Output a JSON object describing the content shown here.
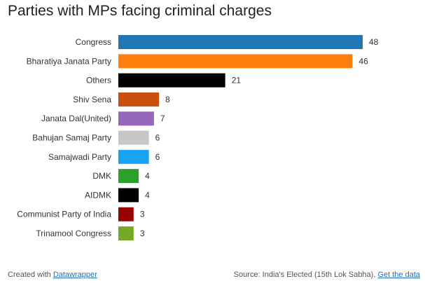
{
  "chart_data": {
    "type": "bar",
    "orientation": "horizontal",
    "title": "Parties with MPs facing criminal charges",
    "categories": [
      "Congress",
      "Bharatiya Janata Party",
      "Others",
      "Shiv Sena",
      "Janata Dal(United)",
      "Bahujan Samaj Party",
      "Samajwadi Party",
      "DMK",
      "AIDMK",
      "Communist Party of India",
      "Trinamool Congress"
    ],
    "values": [
      48,
      46,
      21,
      8,
      7,
      6,
      6,
      4,
      4,
      3,
      3
    ],
    "colors": [
      "#1f77b4",
      "#ff7f0e",
      "#000000",
      "#c9500d",
      "#9467bd",
      "#c7c7c7",
      "#17a2f4",
      "#2ca02c",
      "#000000",
      "#990000",
      "#77aa22"
    ],
    "xlim": [
      0,
      48
    ],
    "grid": false,
    "legend": "none",
    "data_labels": true
  },
  "footer": {
    "created_prefix": "Created with ",
    "created_link": "Datawrapper",
    "source_text": "Source: India's Elected (15th Lok Sabha), ",
    "data_link": "Get the data"
  }
}
